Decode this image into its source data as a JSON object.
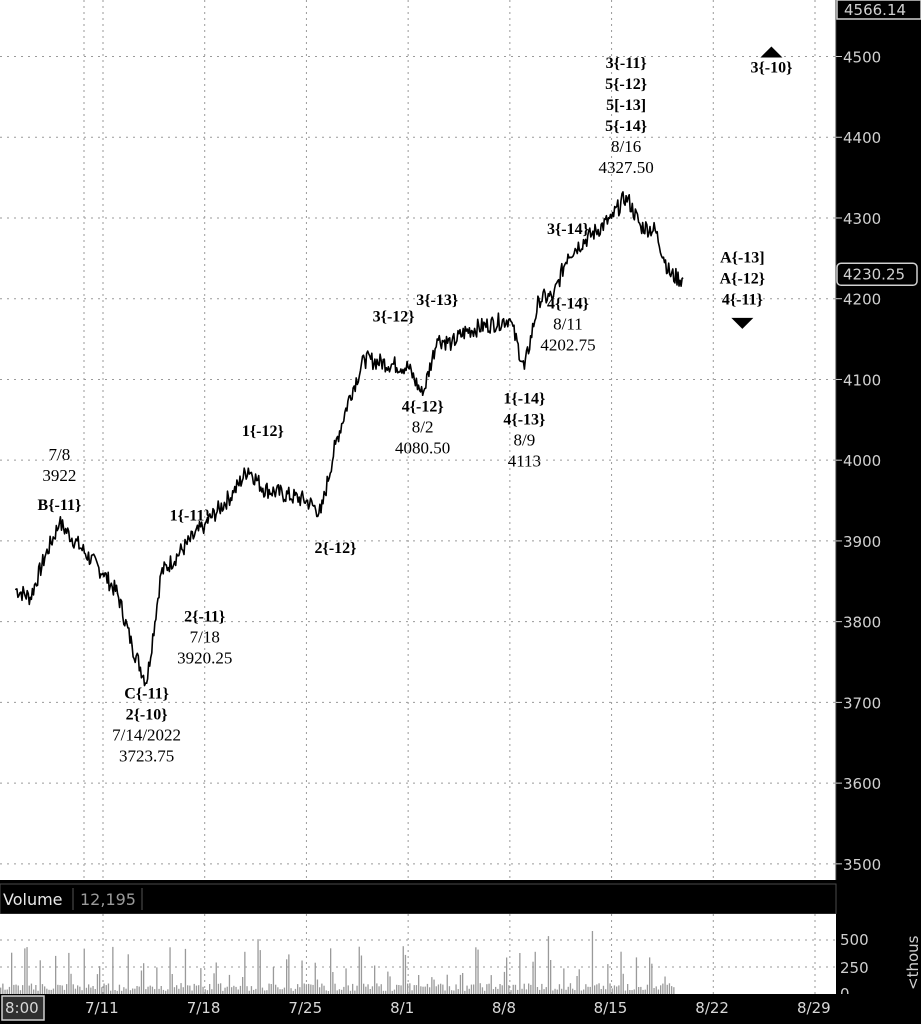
{
  "chart_data": {
    "type": "line",
    "price_axis": {
      "ticks": [
        3500,
        3600,
        3700,
        3800,
        3900,
        4000,
        4100,
        4200,
        4300,
        4400,
        4500
      ],
      "ylim": [
        3480,
        4570
      ]
    },
    "date_axis": {
      "labels": [
        "8:00",
        "7/11",
        "7/18",
        "7/25",
        "8/1",
        "8/8",
        "8/15",
        "8/22",
        "8/29"
      ]
    },
    "price_badges": {
      "top": "4566.14",
      "last": "4230.25"
    },
    "series": [
      {
        "x": [
          "7/5",
          "7/6",
          "7/7",
          "7/8",
          "7/11",
          "7/12",
          "7/13",
          "7/14",
          "7/15",
          "7/18",
          "7/19",
          "7/20",
          "7/21",
          "7/22",
          "7/25",
          "7/26",
          "7/27",
          "7/28",
          "7/29",
          "8/1",
          "8/2",
          "8/3",
          "8/4",
          "8/5",
          "8/8",
          "8/9",
          "8/10",
          "8/11",
          "8/12",
          "8/15",
          "8/16",
          "8/17",
          "8/18",
          "8/19"
        ],
        "y": [
          3840,
          3830,
          3880,
          3922,
          3860,
          3835,
          3770,
          3723.75,
          3860,
          3920.25,
          3940,
          3960,
          3990,
          3965,
          3950,
          3935,
          4020,
          4080,
          4125,
          4115,
          4080.5,
          4150,
          4145,
          4160,
          4175,
          4113,
          4200,
          4202.75,
          4255,
          4300,
          4327.5,
          4290,
          4285,
          4230.25
        ]
      }
    ],
    "volume": {
      "label": "Volume",
      "value": "12,195",
      "ticks": [
        "500",
        "250",
        "0"
      ],
      "unit": "<thous"
    },
    "annotations": [
      {
        "lines": [
          "7/8",
          "3922"
        ],
        "bold": [
          false,
          false
        ],
        "x": "7/8",
        "y": 4000
      },
      {
        "lines": [
          "B{-11}"
        ],
        "bold": [
          true
        ],
        "x": "7/8",
        "y": 3938
      },
      {
        "lines": [
          "1{-11}"
        ],
        "bold": [
          true
        ],
        "x": "7/17",
        "y": 3925
      },
      {
        "lines": [
          "2{-11}",
          "7/18",
          "3920.25"
        ],
        "bold": [
          true,
          false,
          false
        ],
        "x": "7/18",
        "y": 3800
      },
      {
        "lines": [
          "C{-11}",
          "2{-10}",
          "7/14/2022",
          "3723.75"
        ],
        "bold": [
          true,
          true,
          false,
          false
        ],
        "x": "7/14",
        "y": 3705
      },
      {
        "lines": [
          "1{-12}"
        ],
        "bold": [
          true
        ],
        "x": "7/22",
        "y": 4030
      },
      {
        "lines": [
          "2{-12}"
        ],
        "bold": [
          true
        ],
        "x": "7/27",
        "y": 3885
      },
      {
        "lines": [
          "3{-12}"
        ],
        "bold": [
          true
        ],
        "x": "7/31",
        "y": 4172
      },
      {
        "lines": [
          "4{-12}",
          "8/2",
          "4080.50"
        ],
        "bold": [
          true,
          false,
          false
        ],
        "x": "8/2",
        "y": 4060
      },
      {
        "lines": [
          "3{-13}"
        ],
        "bold": [
          true
        ],
        "x": "8/3",
        "y": 4192
      },
      {
        "lines": [
          "1{-14}",
          "4{-13}",
          "8/9",
          "4113"
        ],
        "bold": [
          true,
          true,
          false,
          false
        ],
        "x": "8/9",
        "y": 4070
      },
      {
        "lines": [
          "3{-14}"
        ],
        "bold": [
          true
        ],
        "x": "8/12",
        "y": 4280
      },
      {
        "lines": [
          "4{-14}",
          "8/11",
          "4202.75"
        ],
        "bold": [
          true,
          false,
          false
        ],
        "x": "8/12",
        "y": 4188
      },
      {
        "lines": [
          "3{-11}",
          "5{-12}",
          "5[-13]",
          "5{-14}",
          "8/16",
          "4327.50"
        ],
        "bold": [
          true,
          true,
          true,
          true,
          false,
          false
        ],
        "x": "8/16",
        "y": 4486
      },
      {
        "lines": [
          "3{-10}"
        ],
        "bold": [
          true
        ],
        "x": "8/26",
        "y": 4480
      },
      {
        "lines": [
          "A{-13]",
          "A{-12}",
          "4{-11}"
        ],
        "bold": [
          true,
          true,
          true
        ],
        "x": "8/24",
        "y": 4245
      }
    ],
    "markers": [
      {
        "shape": "triangle-up",
        "x": "8/26",
        "y": 4505
      },
      {
        "shape": "triangle-down",
        "x": "8/24",
        "y": 4170
      }
    ]
  }
}
